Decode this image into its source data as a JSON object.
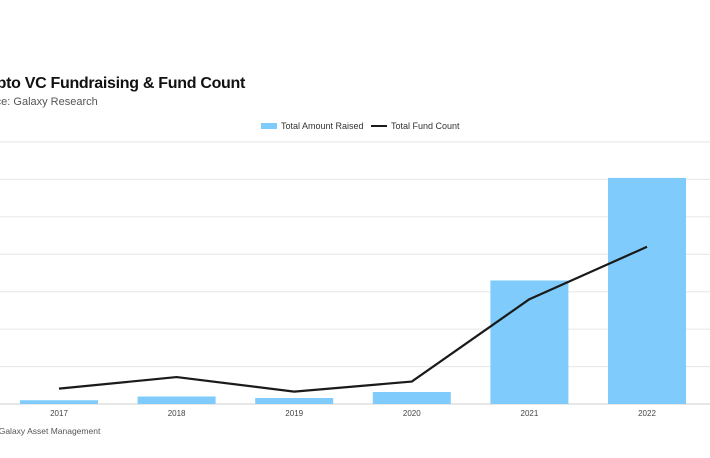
{
  "header": {
    "title": "ypto VC Fundraising & Fund Count",
    "subtitle": "rce: Galaxy Research"
  },
  "footer": {
    "text": ": Galaxy Asset Management"
  },
  "chart_data": {
    "type": "bar",
    "categories": [
      "2017",
      "2018",
      "2019",
      "2020",
      "2021",
      "2022"
    ],
    "series": [
      {
        "name": "Total Amount Raised",
        "type": "bar",
        "color": "#7ecbfc",
        "values": [
          0.5,
          1.0,
          0.8,
          1.6,
          16.5,
          30.2
        ]
      },
      {
        "name": "Total Fund Count",
        "type": "line",
        "color": "#1a1a1a",
        "values": [
          41,
          72,
          33,
          60,
          280,
          420
        ]
      }
    ],
    "y_left": {
      "min": 0,
      "max": 35
    },
    "y_right": {
      "min": 0,
      "max": 700
    },
    "legend_position": "top-center",
    "grid": true,
    "colors": {
      "bar": "#7ecbfc",
      "line": "#1a1a1a",
      "grid": "#e6e6e6",
      "axis": "#cfcfcf"
    }
  }
}
